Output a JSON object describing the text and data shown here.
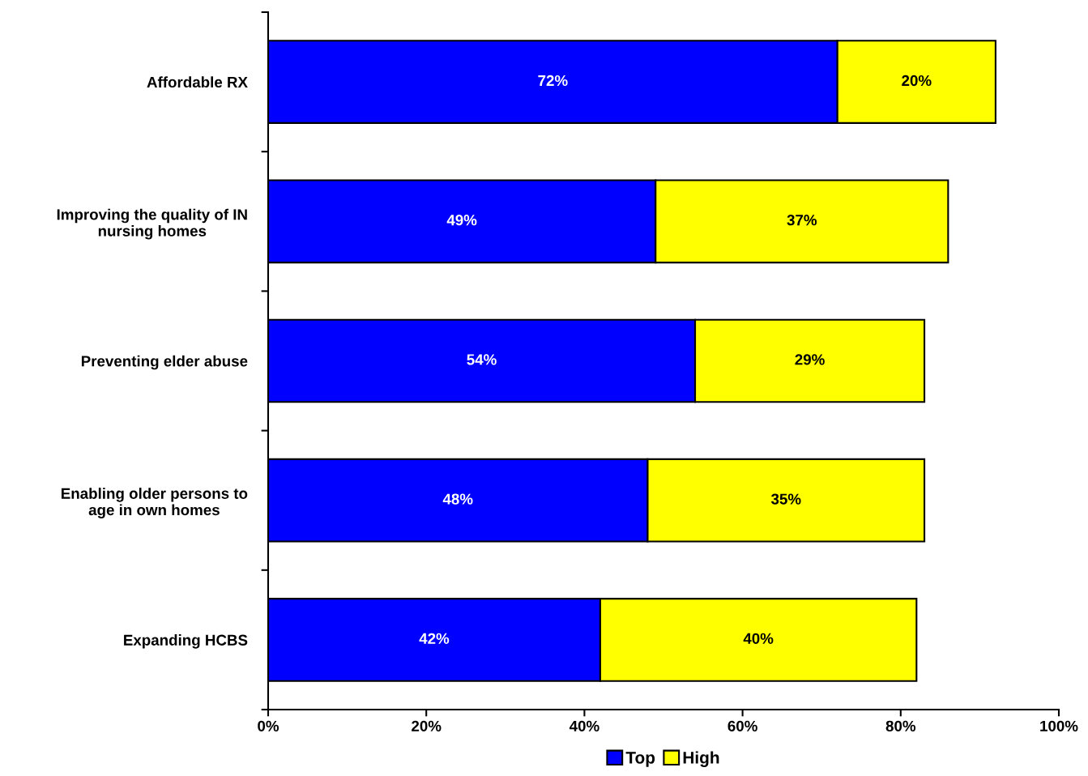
{
  "chart_data": {
    "type": "bar",
    "orientation": "horizontal",
    "stacked": true,
    "categories": [
      "Affordable RX",
      "Improving the quality of IN\nnursing homes",
      "Preventing elder abuse",
      "Enabling older persons to\nage in own homes",
      "Expanding HCBS"
    ],
    "series": [
      {
        "name": "Top",
        "color": "#0000ff",
        "values": [
          72,
          49,
          54,
          48,
          42
        ],
        "value_labels": [
          "72%",
          "49%",
          "54%",
          "48%",
          "42%"
        ]
      },
      {
        "name": "High",
        "color": "#ffff00",
        "values": [
          20,
          37,
          29,
          35,
          40
        ],
        "value_labels": [
          "20%",
          "37%",
          "29%",
          "35%",
          "40%"
        ]
      }
    ],
    "xlim": [
      0,
      100
    ],
    "xticks": [
      {
        "value": 0,
        "label": "0%"
      },
      {
        "value": 20,
        "label": "20%"
      },
      {
        "value": 40,
        "label": "40%"
      },
      {
        "value": 60,
        "label": "60%"
      },
      {
        "value": 80,
        "label": "80%"
      },
      {
        "value": 100,
        "label": "100%"
      }
    ],
    "grid": false,
    "legend": "bottom"
  }
}
